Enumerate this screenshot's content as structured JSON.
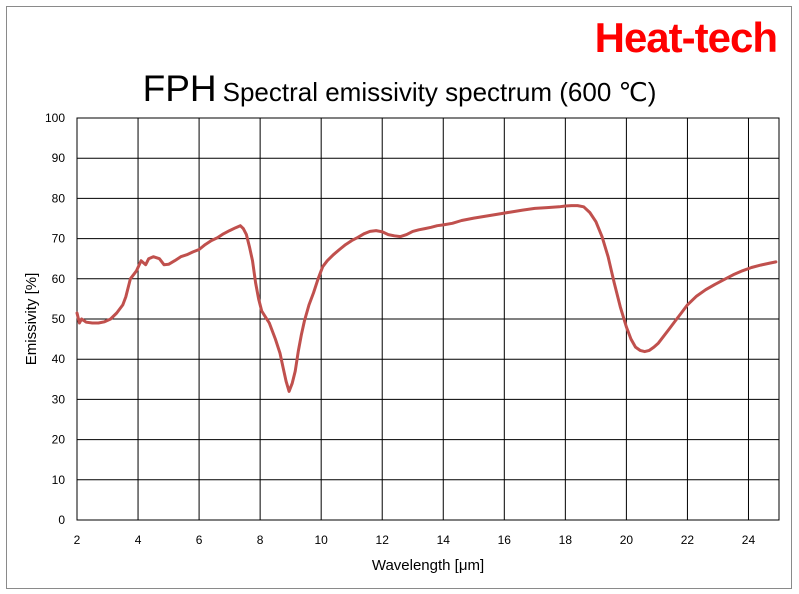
{
  "brand": "Heat-tech",
  "title": {
    "main": "FPH",
    "sub": "Spectral emissivity spectrum (600 ℃)"
  },
  "colors": {
    "series": "#c0504d",
    "brand": "#ff0000",
    "grid": "#000000"
  },
  "chart_data": {
    "type": "line",
    "title": "FPH Spectral emissivity spectrum (600 ℃)",
    "xlabel": "Wavelength [μm]",
    "ylabel": "Emissivity [%]",
    "xlim": [
      2,
      25
    ],
    "ylim": [
      0,
      100
    ],
    "xticks": [
      2,
      4,
      6,
      8,
      10,
      12,
      14,
      16,
      18,
      20,
      22,
      24
    ],
    "yticks": [
      0,
      10,
      20,
      30,
      40,
      50,
      60,
      70,
      80,
      90,
      100
    ],
    "grid": true,
    "legend": "none",
    "series": [
      {
        "x": [
          2.0,
          2.08,
          2.15,
          2.3,
          2.5,
          2.7,
          2.9,
          3.1,
          3.3,
          3.5,
          3.6,
          3.75,
          3.95,
          4.1,
          4.25,
          4.35,
          4.5,
          4.7,
          4.85,
          5.0,
          5.2,
          5.4,
          5.6,
          5.8,
          6.0,
          6.2,
          6.4,
          6.6,
          6.8,
          7.0,
          7.2,
          7.35,
          7.45,
          7.55,
          7.65,
          7.75,
          7.85,
          7.95,
          8.05,
          8.15,
          8.3,
          8.5,
          8.65,
          8.75,
          8.85,
          8.95,
          9.05,
          9.15,
          9.25,
          9.35,
          9.45,
          9.6,
          9.75,
          9.9,
          10.05,
          10.2,
          10.4,
          10.6,
          10.8,
          11.0,
          11.2,
          11.4,
          11.6,
          11.8,
          12.0,
          12.2,
          12.4,
          12.6,
          12.8,
          13.0,
          13.2,
          13.4,
          13.6,
          13.8,
          14.0,
          14.3,
          14.6,
          15.0,
          15.4,
          15.8,
          16.2,
          16.6,
          17.0,
          17.4,
          17.8,
          18.0,
          18.2,
          18.4,
          18.6,
          18.8,
          19.0,
          19.2,
          19.4,
          19.6,
          19.8,
          20.0,
          20.15,
          20.3,
          20.45,
          20.6,
          20.75,
          20.9,
          21.05,
          21.2,
          21.4,
          21.6,
          21.8,
          22.0,
          22.3,
          22.6,
          22.9,
          23.2,
          23.5,
          23.8,
          24.1,
          24.4,
          24.7,
          24.9
        ],
        "y": [
          51.5,
          49.0,
          50.0,
          49.2,
          49.0,
          49.0,
          49.3,
          50.0,
          51.5,
          53.5,
          55.5,
          60.0,
          62.0,
          64.5,
          63.5,
          65.0,
          65.5,
          65.0,
          63.5,
          63.6,
          64.5,
          65.5,
          66.0,
          66.7,
          67.3,
          68.5,
          69.5,
          70.2,
          71.2,
          72.0,
          72.7,
          73.2,
          72.5,
          71.0,
          68.0,
          64.5,
          59.0,
          55.0,
          52.0,
          50.8,
          49.0,
          45.0,
          41.5,
          38.0,
          34.5,
          32.0,
          34.0,
          37.0,
          42.0,
          46.0,
          49.5,
          53.5,
          56.5,
          60.0,
          63.0,
          64.5,
          66.0,
          67.3,
          68.5,
          69.5,
          70.3,
          71.2,
          71.8,
          72.0,
          71.7,
          71.0,
          70.7,
          70.5,
          71.0,
          71.8,
          72.2,
          72.5,
          72.8,
          73.2,
          73.4,
          73.8,
          74.5,
          75.1,
          75.6,
          76.1,
          76.6,
          77.1,
          77.5,
          77.7,
          77.9,
          78.1,
          78.2,
          78.2,
          77.9,
          76.5,
          74.2,
          70.5,
          65.5,
          59.0,
          53.0,
          48.0,
          45.0,
          43.0,
          42.2,
          41.9,
          42.2,
          43.0,
          44.0,
          45.5,
          47.5,
          49.5,
          51.5,
          53.5,
          55.7,
          57.3,
          58.6,
          59.8,
          61.0,
          62.0,
          62.8,
          63.4,
          63.9,
          64.2
        ]
      }
    ]
  }
}
